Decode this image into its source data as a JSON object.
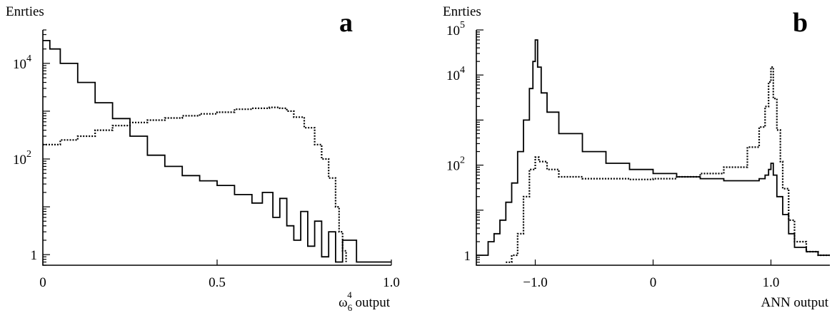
{
  "chart_data": [
    {
      "type": "line",
      "panel_label": "a",
      "ylabel": "Enrties",
      "xlabel_main": "ω",
      "xlabel_sub": "6",
      "xlabel_sup": "4",
      "xlabel_suffix": " output",
      "xlim": [
        0,
        1.0
      ],
      "ylim": [
        0.6,
        50000
      ],
      "yscale": "log",
      "x_ticks": [
        {
          "value": 0,
          "label": "0"
        },
        {
          "value": 0.5,
          "label": "0.5"
        },
        {
          "value": 1.0,
          "label": "1.0"
        }
      ],
      "y_ticks": [
        {
          "value": 1,
          "label": "1",
          "sup": ""
        },
        {
          "value": 100,
          "label": "10",
          "sup": "2"
        },
        {
          "value": 10000,
          "label": "10",
          "sup": "4"
        }
      ],
      "grid": false,
      "series": [
        {
          "style": "solid",
          "x": [
            0,
            0.02,
            0.05,
            0.1,
            0.15,
            0.2,
            0.25,
            0.3,
            0.35,
            0.4,
            0.45,
            0.5,
            0.55,
            0.6,
            0.63,
            0.66,
            0.68,
            0.7,
            0.72,
            0.74,
            0.76,
            0.78,
            0.8,
            0.82,
            0.84,
            0.86,
            0.9,
            0.95,
            1.0
          ],
          "y": [
            30000,
            20000,
            10000,
            4000,
            1500,
            700,
            300,
            120,
            70,
            45,
            35,
            28,
            18,
            12,
            20,
            6,
            15,
            4,
            2,
            8,
            1.5,
            5,
            0.9,
            3,
            0.7,
            2,
            0.7,
            0.7,
            0.7
          ]
        },
        {
          "style": "dotted",
          "x": [
            0,
            0.05,
            0.1,
            0.15,
            0.2,
            0.25,
            0.3,
            0.35,
            0.4,
            0.45,
            0.5,
            0.55,
            0.6,
            0.65,
            0.68,
            0.7,
            0.72,
            0.75,
            0.78,
            0.8,
            0.82,
            0.84,
            0.85,
            0.86,
            0.87
          ],
          "y": [
            200,
            250,
            300,
            400,
            500,
            580,
            650,
            720,
            800,
            880,
            950,
            1100,
            1150,
            1200,
            1150,
            1000,
            750,
            450,
            200,
            100,
            40,
            10,
            3,
            1.2,
            0.7
          ]
        }
      ]
    },
    {
      "type": "line",
      "panel_label": "b",
      "ylabel": "Enrties",
      "xlabel": "ANN output",
      "xlim": [
        -1.5,
        1.5
      ],
      "ylim": [
        0.6,
        100000
      ],
      "yscale": "log",
      "x_ticks": [
        {
          "value": -1.0,
          "label": "−1.0"
        },
        {
          "value": 0,
          "label": "0"
        },
        {
          "value": 1.0,
          "label": "1.0"
        }
      ],
      "y_ticks": [
        {
          "value": 1,
          "label": "1",
          "sup": ""
        },
        {
          "value": 100,
          "label": "10",
          "sup": "2"
        },
        {
          "value": 10000,
          "label": "10",
          "sup": "4"
        },
        {
          "value": 100000,
          "label": "10",
          "sup": "5"
        }
      ],
      "grid": false,
      "series": [
        {
          "style": "solid",
          "x": [
            -1.5,
            -1.4,
            -1.35,
            -1.3,
            -1.25,
            -1.2,
            -1.15,
            -1.1,
            -1.05,
            -1.02,
            -1.0,
            -0.98,
            -0.95,
            -0.9,
            -0.8,
            -0.6,
            -0.4,
            -0.2,
            0,
            0.2,
            0.4,
            0.6,
            0.8,
            0.9,
            0.95,
            0.98,
            1.0,
            1.02,
            1.05,
            1.1,
            1.15,
            1.2,
            1.3,
            1.4,
            1.5
          ],
          "y": [
            1,
            2,
            3,
            6,
            15,
            40,
            200,
            1000,
            5000,
            20000,
            60000,
            15000,
            4000,
            1500,
            500,
            200,
            110,
            80,
            65,
            55,
            50,
            45,
            45,
            50,
            60,
            80,
            110,
            60,
            20,
            8,
            3,
            1.5,
            1.2,
            1,
            1
          ]
        },
        {
          "style": "dotted",
          "x": [
            -1.25,
            -1.2,
            -1.15,
            -1.1,
            -1.05,
            -1.0,
            -0.97,
            -0.9,
            -0.8,
            -0.6,
            -0.4,
            -0.2,
            0,
            0.2,
            0.4,
            0.6,
            0.8,
            0.9,
            0.95,
            0.98,
            1.0,
            1.02,
            1.05,
            1.08,
            1.1,
            1.15,
            1.2,
            1.3,
            1.4,
            1.5
          ],
          "y": [
            0.7,
            1,
            3,
            20,
            80,
            150,
            120,
            80,
            55,
            50,
            50,
            48,
            50,
            55,
            65,
            90,
            250,
            700,
            2000,
            7000,
            15000,
            3000,
            600,
            120,
            30,
            6,
            2,
            1.2,
            1,
            1
          ]
        }
      ]
    }
  ]
}
